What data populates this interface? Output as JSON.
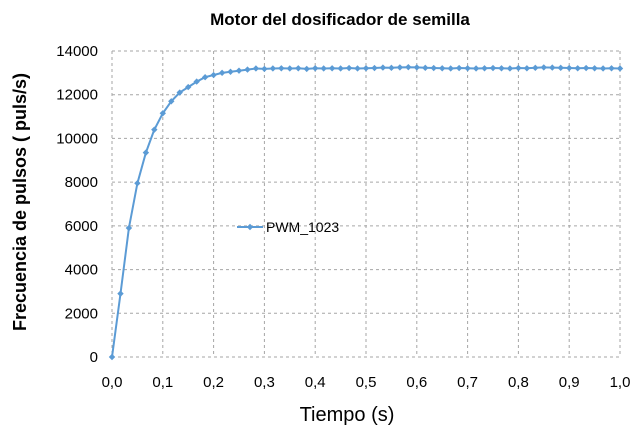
{
  "chart_data": {
    "type": "line",
    "title": "Motor del dosificador de semilla",
    "xlabel": "Tiempo (s)",
    "ylabel": "Frecuencia de pulsos ( puls/s)",
    "xlim": [
      0,
      1.0
    ],
    "ylim": [
      0,
      14000
    ],
    "x_ticks": [
      0.0,
      0.1,
      0.2,
      0.3,
      0.4,
      0.5,
      0.6,
      0.7,
      0.8,
      0.9,
      1.0
    ],
    "x_tick_labels": [
      "0,0",
      "0,1",
      "0,2",
      "0,3",
      "0,4",
      "0,5",
      "0,6",
      "0,7",
      "0,8",
      "0,9",
      "1,0"
    ],
    "y_ticks": [
      0,
      2000,
      4000,
      6000,
      8000,
      10000,
      12000,
      14000
    ],
    "y_tick_labels": [
      "0",
      "2000",
      "4000",
      "6000",
      "8000",
      "10000",
      "12000",
      "14000"
    ],
    "grid": true,
    "legend_position": "center",
    "series": [
      {
        "name": "PWM_1023",
        "color": "#5b9bd5",
        "x": [
          0.0,
          0.0167,
          0.0333,
          0.05,
          0.0667,
          0.0833,
          0.1,
          0.1167,
          0.1333,
          0.15,
          0.1667,
          0.1833,
          0.2,
          0.2167,
          0.2333,
          0.25,
          0.2667,
          0.2833,
          0.3,
          0.3167,
          0.3333,
          0.35,
          0.3667,
          0.3833,
          0.4,
          0.4167,
          0.4333,
          0.45,
          0.4667,
          0.4833,
          0.5,
          0.5167,
          0.5333,
          0.55,
          0.5667,
          0.5833,
          0.6,
          0.6167,
          0.6333,
          0.65,
          0.6667,
          0.6833,
          0.7,
          0.7167,
          0.7333,
          0.75,
          0.7667,
          0.7833,
          0.8,
          0.8167,
          0.8333,
          0.85,
          0.8667,
          0.8833,
          0.9,
          0.9167,
          0.9333,
          0.95,
          0.9667,
          0.9833,
          1.0
        ],
        "y": [
          0,
          2900,
          5900,
          7950,
          9350,
          10400,
          11150,
          11700,
          12100,
          12350,
          12600,
          12800,
          12900,
          13000,
          13050,
          13100,
          13150,
          13200,
          13180,
          13200,
          13210,
          13200,
          13210,
          13180,
          13210,
          13200,
          13210,
          13200,
          13220,
          13200,
          13210,
          13220,
          13240,
          13230,
          13250,
          13260,
          13250,
          13230,
          13220,
          13210,
          13200,
          13220,
          13210,
          13200,
          13210,
          13220,
          13210,
          13200,
          13220,
          13210,
          13230,
          13250,
          13240,
          13230,
          13220,
          13210,
          13220,
          13210,
          13200,
          13210,
          13200
        ]
      }
    ]
  }
}
